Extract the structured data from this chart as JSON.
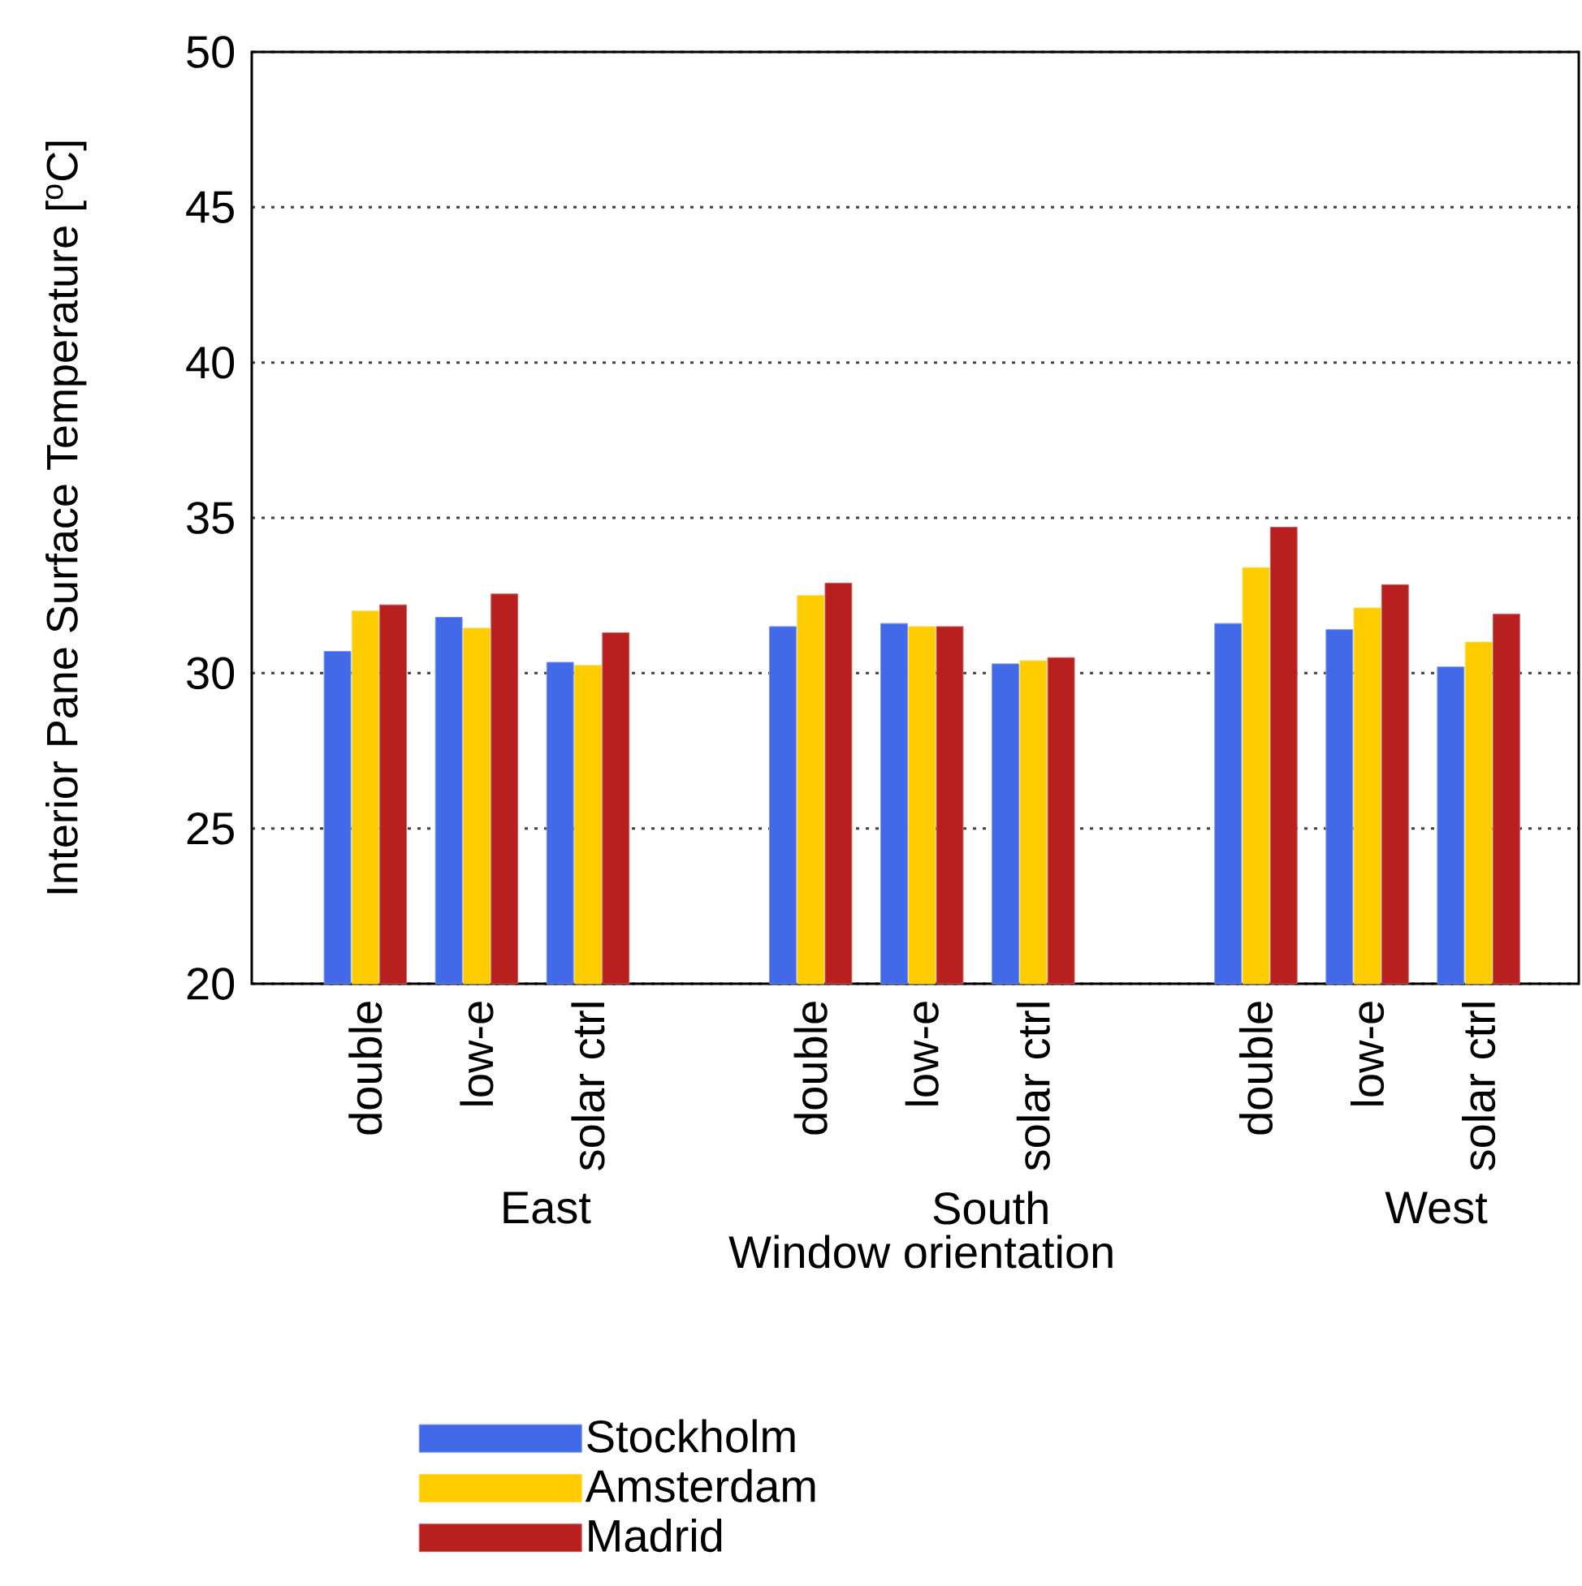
{
  "chart_data": {
    "type": "bar",
    "ylabel": "Interior Pane Surface Temperature [$^{o}$C]",
    "xlabel": "Window orientation",
    "categories": [
      "double",
      "low-e",
      "solar ctrl",
      "double",
      "low-e",
      "solar ctrl",
      "double",
      "low-e",
      "solar ctrl"
    ],
    "annotations": [
      "East",
      "South",
      "West"
    ],
    "series": [
      {
        "name": "Stockholm",
        "color": "#4169e8",
        "values": [
          30.7,
          31.8,
          30.35,
          31.5,
          31.6,
          30.3,
          31.6,
          31.4,
          30.2
        ]
      },
      {
        "name": "Amsterdam",
        "color": "#ffcc00",
        "values": [
          32.0,
          31.45,
          30.25,
          32.5,
          31.5,
          30.4,
          33.4,
          32.1,
          31.0
        ]
      },
      {
        "name": "Madrid",
        "color": "#b82020",
        "values": [
          32.2,
          32.55,
          31.3,
          32.9,
          31.5,
          30.5,
          34.7,
          32.85,
          31.9
        ]
      }
    ],
    "ylim": [
      20,
      50
    ],
    "yticks": [
      20,
      25,
      30,
      35,
      40,
      45,
      50
    ],
    "grid": "y",
    "legend": "bottom"
  }
}
